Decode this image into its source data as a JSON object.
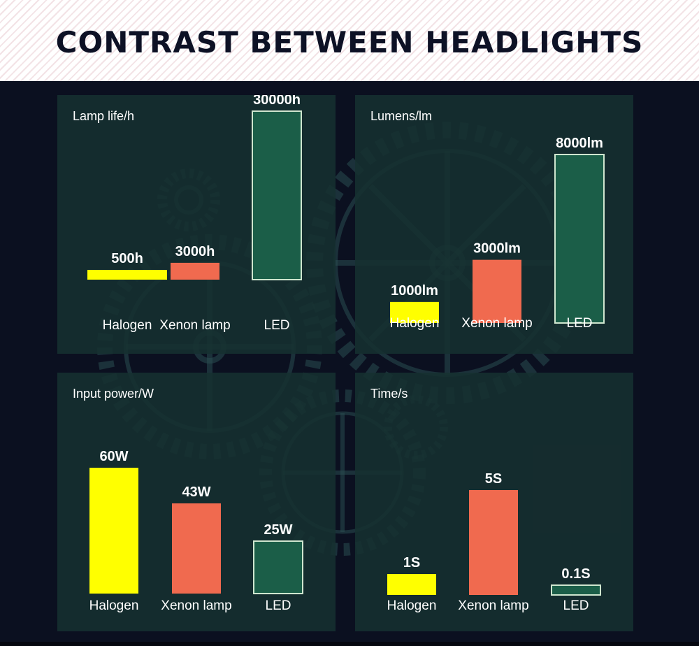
{
  "title": "CONTRAST BETWEEN HEADLIGHTS",
  "colors": {
    "halogen": "#ffff00",
    "xenon": "#f06a4f",
    "led": "#1b5e48",
    "led_border": "#cfe6cf",
    "background": "#0b1020",
    "panel": "#163030"
  },
  "chart_data": [
    {
      "type": "bar",
      "title": "Lamp life/h",
      "categories": [
        "Halogen",
        "Xenon lamp",
        "LED"
      ],
      "values": [
        500,
        3000,
        30000
      ],
      "value_labels": [
        "500h",
        "3000h",
        "30000h"
      ]
    },
    {
      "type": "bar",
      "title": "Lumens/lm",
      "categories": [
        "Halogen",
        "Xenon lamp",
        "LED"
      ],
      "values": [
        1000,
        3000,
        8000
      ],
      "value_labels": [
        "1000lm",
        "3000lm",
        "8000lm"
      ]
    },
    {
      "type": "bar",
      "title": "Input power/W",
      "categories": [
        "Halogen",
        "Xenon lamp",
        "LED"
      ],
      "values": [
        60,
        43,
        25
      ],
      "value_labels": [
        "60W",
        "43W",
        "25W"
      ]
    },
    {
      "type": "bar",
      "title": "Time/s",
      "categories": [
        "Halogen",
        "Xenon lamp",
        "LED"
      ],
      "values": [
        1,
        5,
        0.1
      ],
      "value_labels": [
        "1S",
        "5S",
        "0.1S"
      ]
    }
  ]
}
